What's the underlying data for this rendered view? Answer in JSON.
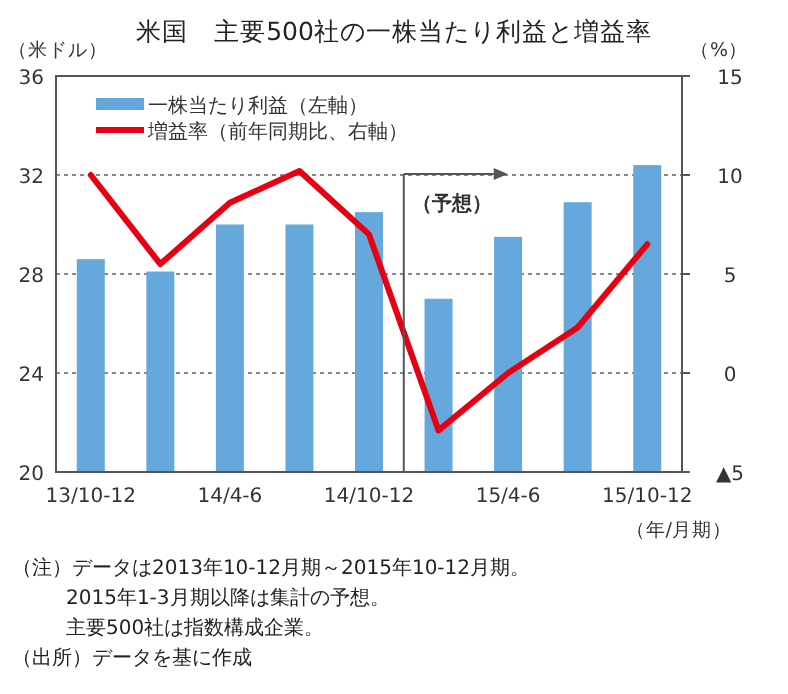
{
  "chart_data": {
    "type": "bar",
    "title": "米国　主要500社の一株当たり利益と増益率",
    "ylabel": "（米ドル）",
    "y2label": "（%）",
    "xlabel": "（年/月期）",
    "categories": [
      "13/10-12",
      null,
      "14/4-6",
      null,
      "14/10-12",
      null,
      "15/4-6",
      null,
      "15/10-12"
    ],
    "series": [
      {
        "name": "一株当たり利益（左軸）",
        "color": "#65a9dc",
        "values": [
          28.6,
          28.1,
          30.0,
          30.0,
          30.5,
          27.0,
          29.5,
          30.9,
          32.4
        ]
      },
      {
        "name": "増益率（前年同期比、右軸）",
        "type": "line",
        "axis": "y2",
        "color": "#e60012",
        "values": [
          10.0,
          5.5,
          8.6,
          10.2,
          7.0,
          -2.9,
          0.0,
          2.3,
          6.5
        ]
      }
    ],
    "ylim": [
      20,
      36
    ],
    "yticks": [
      20,
      24,
      28,
      32,
      36
    ],
    "y2lim": [
      -5,
      15
    ],
    "y2ticks": [
      {
        "value": -5,
        "label": "▲5"
      },
      0,
      5,
      10,
      15
    ],
    "grid": "y",
    "legend": "top left",
    "annotations": [
      "（予想）",
      "（注）データは2013年10-12月期～2015年10-12月期。",
      "2015年1-3月期以降は集計の予想。",
      "主要500社は指数構成企業。",
      "（出所）データを基に作成"
    ]
  }
}
